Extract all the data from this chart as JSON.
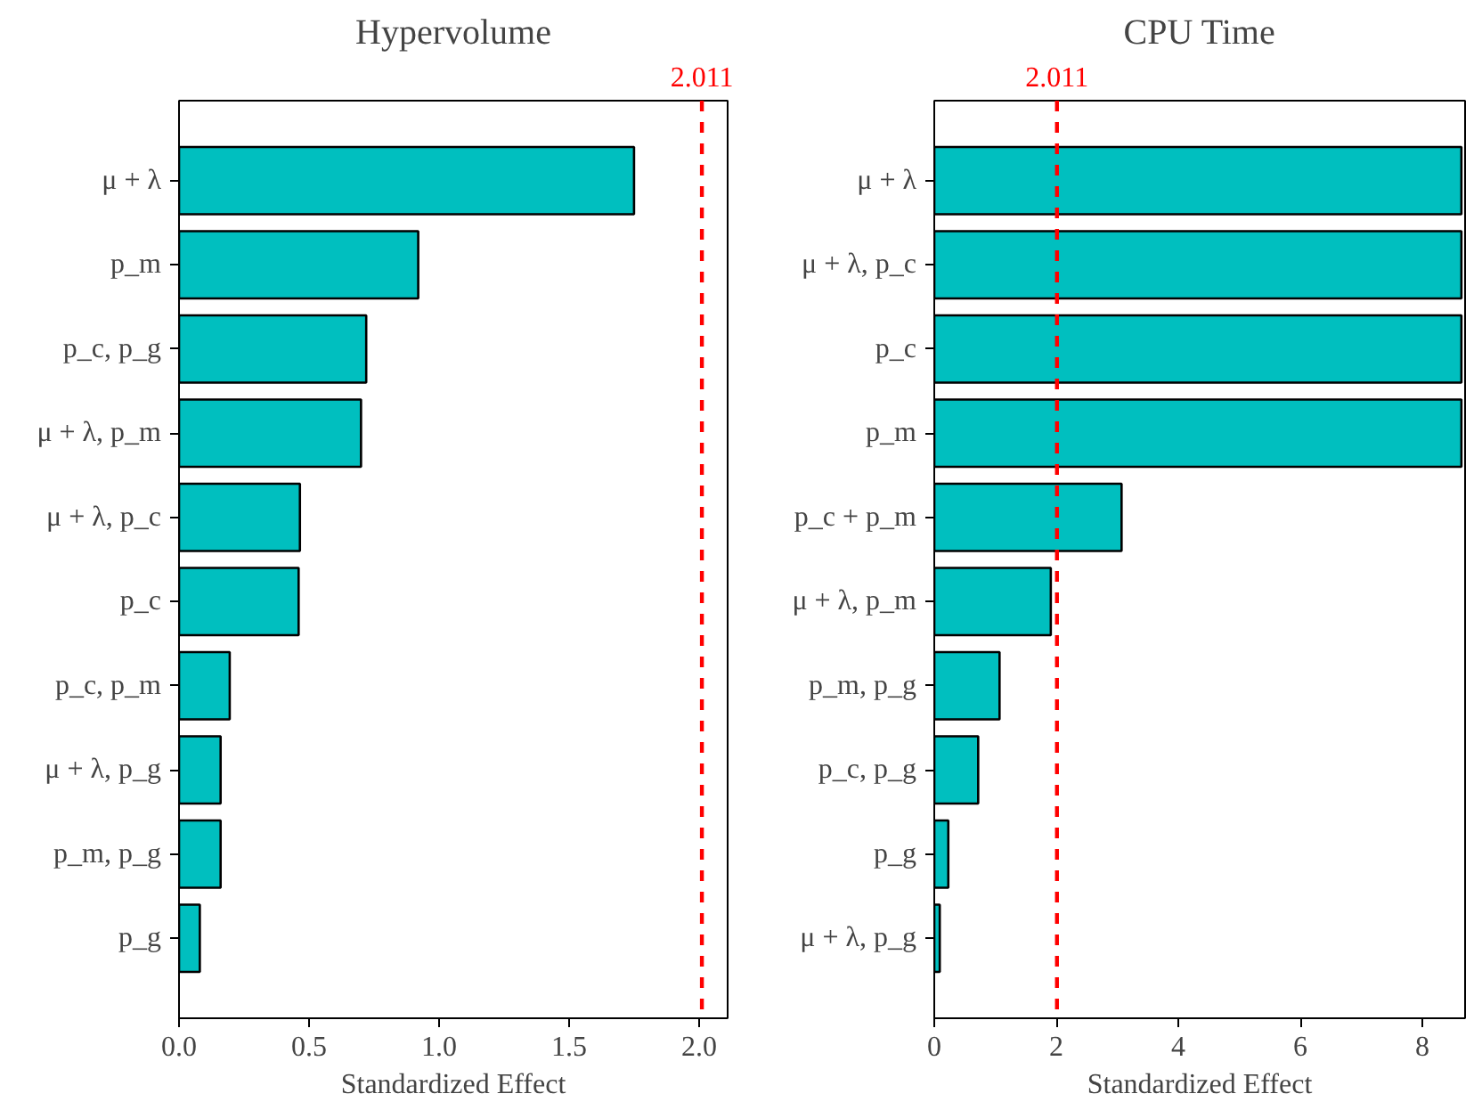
{
  "chart_data": [
    {
      "type": "bar",
      "orientation": "horizontal",
      "title": "Hypervolume",
      "xlabel": "Standardized Effect",
      "categories": [
        "μ + λ",
        "p_m",
        "p_c, p_g",
        "μ + λ, p_m",
        "μ + λ, p_c",
        "p_c",
        "p_c, p_m",
        "μ + λ, p_g",
        "p_m, p_g",
        "p_g"
      ],
      "values": [
        1.75,
        0.92,
        0.72,
        0.7,
        0.465,
        0.46,
        0.195,
        0.16,
        0.16,
        0.08
      ],
      "color": "#00bfbf",
      "xlim": [
        0,
        2.11
      ],
      "xticks": [
        {
          "value": 0,
          "label": "0.0"
        },
        {
          "value": 0.5,
          "label": "0.5"
        },
        {
          "value": 1,
          "label": "1.0"
        },
        {
          "value": 1.5,
          "label": "1.5"
        },
        {
          "value": 2,
          "label": "2.0"
        }
      ],
      "ref_lines": [
        {
          "axis": "x",
          "value": 2.011,
          "label": "2.011",
          "color": "#ff0000",
          "line_style": "dashed"
        }
      ],
      "grid": false
    },
    {
      "type": "bar",
      "orientation": "horizontal",
      "title": "CPU Time",
      "xlabel": "Standardized Effect",
      "categories": [
        "μ + λ",
        "μ + λ, p_c",
        "p_c",
        "p_m",
        "p_c + p_m",
        "μ + λ, p_m",
        "p_m, p_g",
        "p_c, p_g",
        "p_g",
        "μ + λ, p_g"
      ],
      "values": [
        8.64,
        8.64,
        8.64,
        8.64,
        3.07,
        1.91,
        1.07,
        0.72,
        0.23,
        0.09
      ],
      "color": "#00bfbf",
      "xlim": [
        0,
        8.7
      ],
      "xticks": [
        0,
        2,
        4,
        6,
        8
      ],
      "ref_lines": [
        {
          "axis": "x",
          "value": 2.011,
          "label": "2.011",
          "color": "#ff0000",
          "line_style": "dashed"
        }
      ],
      "grid": false
    }
  ]
}
